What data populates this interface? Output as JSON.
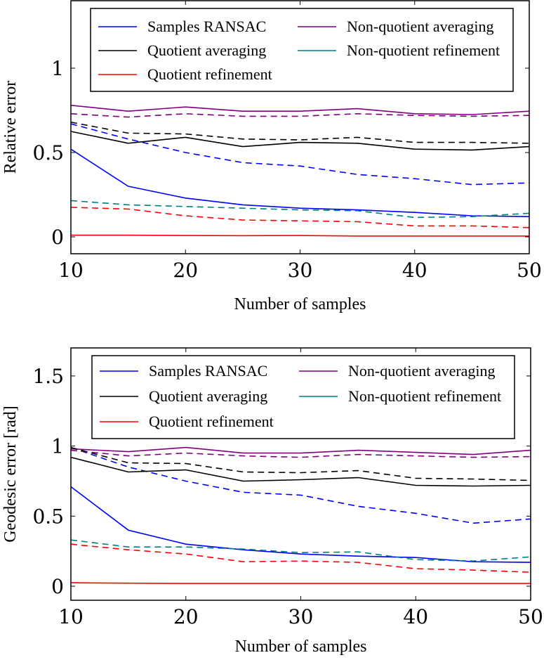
{
  "chart_data": [
    {
      "type": "line",
      "xlabel": "Number of samples",
      "ylabel": "Relative error",
      "xlim": [
        10,
        50
      ],
      "ylim": [
        -0.1,
        1.4
      ],
      "xticks": [
        10,
        20,
        30,
        40,
        50
      ],
      "yticks": [
        0,
        0.5,
        1
      ],
      "xtick_labels": [
        "10",
        "20",
        "30",
        "40",
        "50"
      ],
      "ytick_labels": [
        "0",
        "0.5",
        "1"
      ],
      "legend_placement": "top",
      "legend": [
        {
          "label": "Samples RANSAC",
          "color": "#0000ff"
        },
        {
          "label": "Non-quotient averaging",
          "color": "#800080"
        },
        {
          "label": "Quotient averaging",
          "color": "#000000"
        },
        {
          "label": "Non-quotient refinement",
          "color": "#008080"
        },
        {
          "label": "Quotient refinement",
          "color": "#ff0000"
        }
      ],
      "x": [
        10,
        15,
        20,
        25,
        30,
        35,
        40,
        45,
        50
      ],
      "series": [
        {
          "name": "Samples RANSAC",
          "variant": "solid",
          "color": "#0000ff",
          "values": [
            0.52,
            0.3,
            0.23,
            0.19,
            0.17,
            0.16,
            0.145,
            0.125,
            0.12
          ]
        },
        {
          "name": "Samples RANSAC",
          "variant": "dashed",
          "color": "#0000ff",
          "values": [
            0.67,
            0.58,
            0.5,
            0.44,
            0.42,
            0.37,
            0.345,
            0.31,
            0.32
          ]
        },
        {
          "name": "Non-quotient averaging",
          "variant": "solid",
          "color": "#800080",
          "values": [
            0.78,
            0.745,
            0.77,
            0.745,
            0.745,
            0.76,
            0.73,
            0.725,
            0.745
          ]
        },
        {
          "name": "Non-quotient averaging",
          "variant": "dashed",
          "color": "#800080",
          "values": [
            0.73,
            0.71,
            0.73,
            0.715,
            0.715,
            0.73,
            0.72,
            0.715,
            0.72
          ]
        },
        {
          "name": "Quotient averaging",
          "variant": "solid",
          "color": "#000000",
          "values": [
            0.625,
            0.555,
            0.59,
            0.535,
            0.56,
            0.555,
            0.52,
            0.515,
            0.535
          ]
        },
        {
          "name": "Quotient averaging",
          "variant": "dashed",
          "color": "#000000",
          "values": [
            0.68,
            0.615,
            0.61,
            0.58,
            0.575,
            0.59,
            0.56,
            0.56,
            0.555
          ]
        },
        {
          "name": "Non-quotient refinement",
          "variant": "dashed",
          "color": "#008080",
          "values": [
            0.215,
            0.19,
            0.18,
            0.17,
            0.16,
            0.155,
            0.115,
            0.12,
            0.14
          ]
        },
        {
          "name": "Quotient refinement",
          "variant": "dashed",
          "color": "#ff0000",
          "values": [
            0.175,
            0.165,
            0.125,
            0.1,
            0.095,
            0.09,
            0.065,
            0.065,
            0.055
          ]
        },
        {
          "name": "Quotient refinement",
          "variant": "solid",
          "color": "#ff0000",
          "values": [
            0.01,
            0.01,
            0.008,
            0.007,
            0.008,
            0.005,
            0.005,
            0.005,
            0.005
          ]
        }
      ]
    },
    {
      "type": "line",
      "xlabel": "Number of samples",
      "ylabel": "Geodesic error [rad]",
      "xlim": [
        10,
        50
      ],
      "ylim": [
        -0.1,
        1.7
      ],
      "xticks": [
        10,
        20,
        30,
        40,
        50
      ],
      "yticks": [
        0,
        0.5,
        1,
        1.5
      ],
      "xtick_labels": [
        "10",
        "20",
        "30",
        "40",
        "50"
      ],
      "ytick_labels": [
        "0",
        "0.5",
        "1",
        "1.5"
      ],
      "legend_placement": "top",
      "legend": [
        {
          "label": "Samples RANSAC",
          "color": "#0000ff"
        },
        {
          "label": "Non-quotient averaging",
          "color": "#800080"
        },
        {
          "label": "Quotient averaging",
          "color": "#000000"
        },
        {
          "label": "Non-quotient refinement",
          "color": "#008080"
        },
        {
          "label": "Quotient refinement",
          "color": "#ff0000"
        }
      ],
      "x": [
        10,
        15,
        20,
        25,
        30,
        35,
        40,
        45,
        50
      ],
      "series": [
        {
          "name": "Samples RANSAC",
          "variant": "solid",
          "color": "#0000ff",
          "values": [
            0.71,
            0.4,
            0.3,
            0.26,
            0.23,
            0.215,
            0.205,
            0.175,
            0.17
          ]
        },
        {
          "name": "Samples RANSAC",
          "variant": "dashed",
          "color": "#0000ff",
          "values": [
            0.99,
            0.85,
            0.75,
            0.67,
            0.65,
            0.57,
            0.52,
            0.45,
            0.48
          ]
        },
        {
          "name": "Non-quotient averaging",
          "variant": "solid",
          "color": "#800080",
          "values": [
            0.98,
            0.96,
            0.99,
            0.95,
            0.95,
            0.97,
            0.955,
            0.94,
            0.97
          ]
        },
        {
          "name": "Non-quotient averaging",
          "variant": "dashed",
          "color": "#800080",
          "values": [
            0.97,
            0.93,
            0.95,
            0.93,
            0.92,
            0.94,
            0.93,
            0.92,
            0.925
          ]
        },
        {
          "name": "Quotient averaging",
          "variant": "solid",
          "color": "#000000",
          "values": [
            0.92,
            0.815,
            0.83,
            0.75,
            0.76,
            0.775,
            0.72,
            0.715,
            0.72
          ]
        },
        {
          "name": "Quotient averaging",
          "variant": "dashed",
          "color": "#000000",
          "values": [
            0.99,
            0.88,
            0.875,
            0.815,
            0.81,
            0.825,
            0.77,
            0.765,
            0.755
          ]
        },
        {
          "name": "Non-quotient refinement",
          "variant": "dashed",
          "color": "#008080",
          "values": [
            0.33,
            0.28,
            0.28,
            0.265,
            0.24,
            0.245,
            0.19,
            0.18,
            0.21
          ]
        },
        {
          "name": "Quotient refinement",
          "variant": "dashed",
          "color": "#ff0000",
          "values": [
            0.3,
            0.26,
            0.23,
            0.175,
            0.18,
            0.17,
            0.125,
            0.115,
            0.1
          ]
        },
        {
          "name": "Quotient refinement",
          "variant": "solid",
          "color": "#ff0000",
          "values": [
            0.025,
            0.022,
            0.02,
            0.02,
            0.02,
            0.02,
            0.02,
            0.02,
            0.02
          ]
        }
      ]
    }
  ]
}
